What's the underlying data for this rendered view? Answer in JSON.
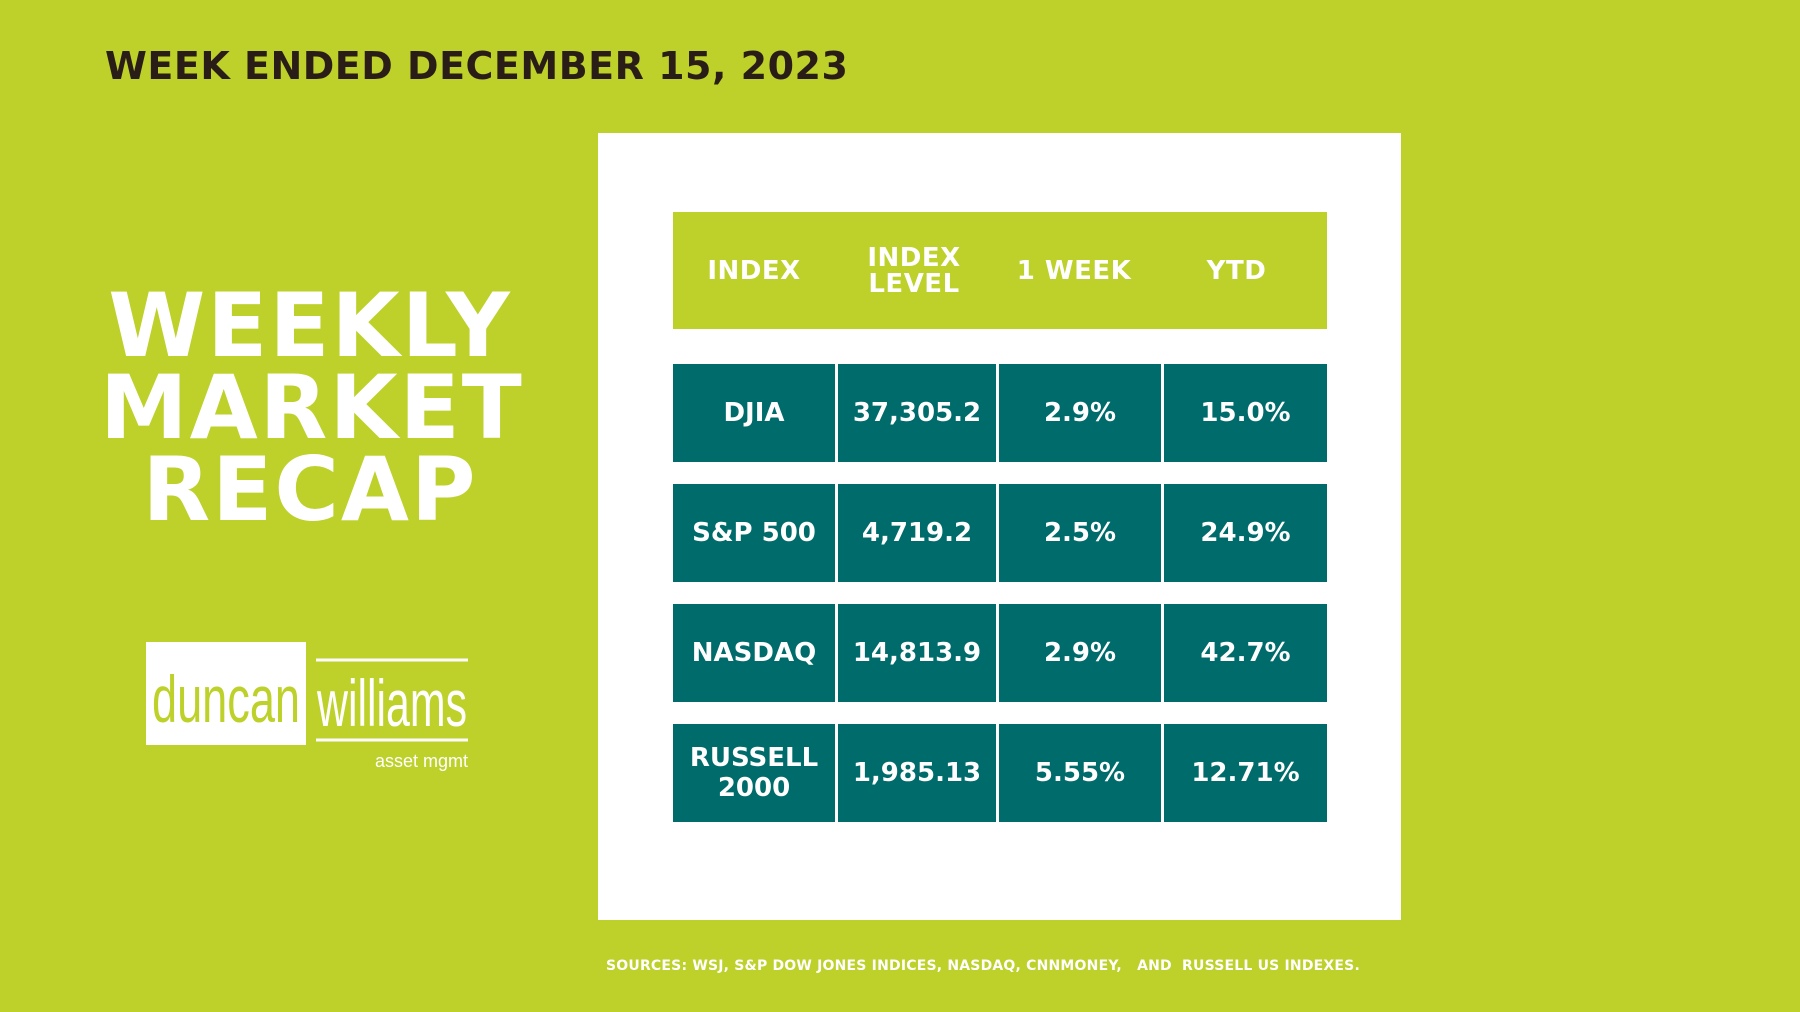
{
  "headline": "WEEK ENDED DECEMBER 15, 2023",
  "title_lines": [
    "WEEKLY",
    "MARKET",
    "RECAP"
  ],
  "logo": {
    "word1": "duncan",
    "word2": "williams",
    "tagline": "asset mgmt"
  },
  "table": {
    "headers": [
      [
        "INDEX"
      ],
      [
        "INDEX",
        "LEVEL"
      ],
      [
        "1 WEEK"
      ],
      [
        "YTD"
      ]
    ],
    "rows": [
      {
        "index": [
          "DJIA"
        ],
        "level": "37,305.2",
        "week": "2.9%",
        "ytd": "15.0%"
      },
      {
        "index": [
          "S&P 500"
        ],
        "level": "4,719.2",
        "week": "2.5%",
        "ytd": "24.9%"
      },
      {
        "index": [
          "NASDAQ"
        ],
        "level": "14,813.9",
        "week": "2.9%",
        "ytd": "42.7%"
      },
      {
        "index": [
          "RUSSELL",
          "2000"
        ],
        "level": "1,985.13",
        "week": "5.55%",
        "ytd": "12.71%"
      }
    ]
  },
  "sources": "SOURCES: WSJ, S&P DOW JONES INDICES, NASDAQ, CNNMONEY,   AND  RUSSELL US INDEXES.",
  "colors": {
    "background": "#bdd12a",
    "teal": "#006b6b",
    "headline": "#2a1d17",
    "white": "#ffffff"
  }
}
